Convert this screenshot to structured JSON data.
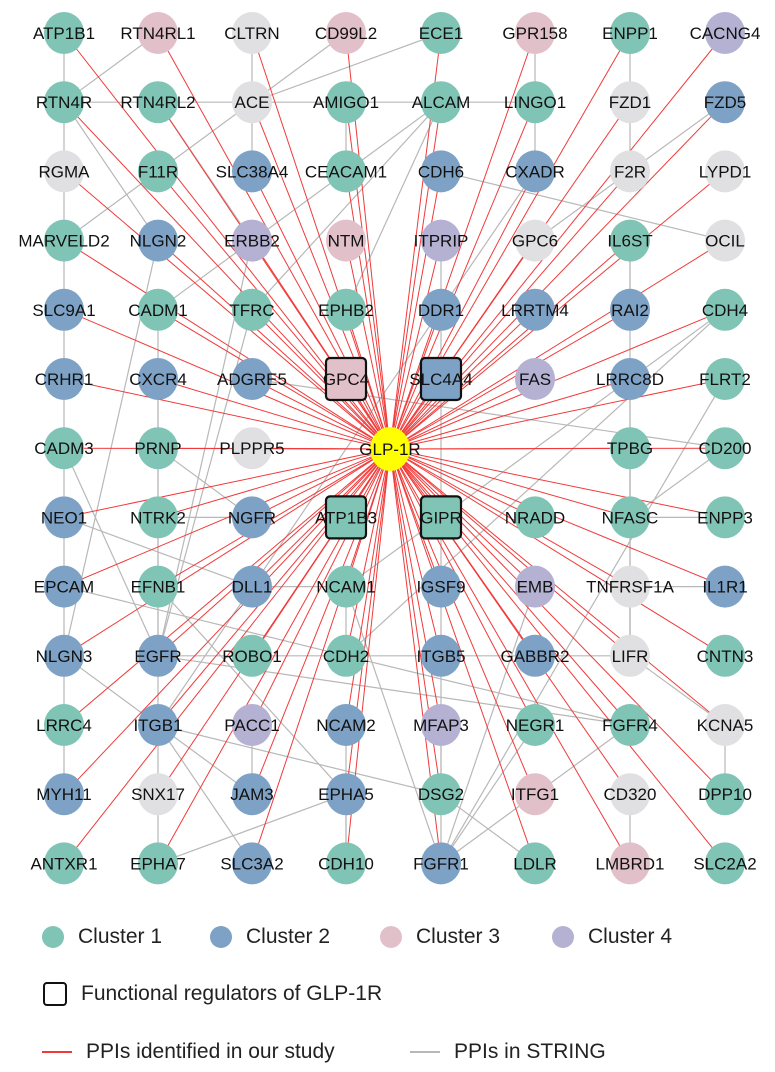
{
  "colors": {
    "cluster1": "#80c4b5",
    "cluster2": "#7ea2c6",
    "cluster3": "#e2c0c9",
    "cluster4": "#b5b1d3",
    "unclustered": "#e0e0e2",
    "center": "#ffff00",
    "study_edge": "#f03a3a",
    "string_edge": "#b8b8b8"
  },
  "center": {
    "name": "GLP-1R"
  },
  "rows": [
    [
      [
        "ATP1B1",
        1
      ],
      [
        "RTN4RL1",
        3
      ],
      [
        "CLTRN",
        0
      ],
      [
        "CD99L2",
        3
      ],
      [
        "ECE1",
        1
      ],
      [
        "GPR158",
        3
      ],
      [
        "ENPP1",
        1
      ],
      [
        "CACNG4",
        4
      ]
    ],
    [
      [
        "RTN4R",
        1
      ],
      [
        "RTN4RL2",
        1
      ],
      [
        "ACE",
        0
      ],
      [
        "AMIGO1",
        1
      ],
      [
        "ALCAM",
        1
      ],
      [
        "LINGO1",
        1
      ],
      [
        "FZD1",
        0
      ],
      [
        "FZD5",
        2
      ]
    ],
    [
      [
        "RGMA",
        0
      ],
      [
        "F11R",
        1
      ],
      [
        "SLC38A4",
        2
      ],
      [
        "CEACAM1",
        1
      ],
      [
        "CDH6",
        2
      ],
      [
        "CXADR",
        2
      ],
      [
        "F2R",
        0
      ],
      [
        "LYPD1",
        0
      ]
    ],
    [
      [
        "MARVELD2",
        1
      ],
      [
        "NLGN2",
        2
      ],
      [
        "ERBB2",
        4
      ],
      [
        "NTM",
        3
      ],
      [
        "ITPRIP",
        4
      ],
      [
        "GPC6",
        0
      ],
      [
        "IL6ST",
        1
      ],
      [
        "OCIL",
        0
      ]
    ],
    [
      [
        "SLC9A1",
        2
      ],
      [
        "CADM1",
        1
      ],
      [
        "TFRC",
        1
      ],
      [
        "EPHB2",
        1
      ],
      [
        "DDR1",
        2
      ],
      [
        "LRRTM4",
        2
      ],
      [
        "RAI2",
        2
      ],
      [
        "CDH4",
        1
      ]
    ],
    [
      [
        "CRHR1",
        2
      ],
      [
        "CXCR4",
        2
      ],
      [
        "ADGRE5",
        2
      ],
      [
        "GPC4",
        3,
        "regulator"
      ],
      [
        "SLC4A4",
        2,
        "regulator"
      ],
      [
        "FAS",
        4
      ],
      [
        "LRRC8D",
        2
      ],
      [
        "FLRT2",
        1
      ]
    ],
    [
      [
        "CADM3",
        1
      ],
      [
        "PRNP",
        1
      ],
      [
        "PLPPR5",
        0
      ],
      null,
      null,
      null,
      [
        "TPBG",
        1
      ],
      [
        "CD200",
        1
      ]
    ],
    [
      [
        "NEO1",
        2
      ],
      [
        "NTRK2",
        1
      ],
      [
        "NGFR",
        2
      ],
      [
        "ATP1B3",
        1,
        "regulator"
      ],
      [
        "GIPR",
        1,
        "regulator"
      ],
      [
        "NRADD",
        1
      ],
      [
        "NFASC",
        1
      ],
      [
        "ENPP3",
        1
      ]
    ],
    [
      [
        "EPCAM",
        2
      ],
      [
        "EFNB1",
        1
      ],
      [
        "DLL1",
        2
      ],
      [
        "NCAM1",
        1
      ],
      [
        "IGSF9",
        2
      ],
      [
        "EMB",
        4
      ],
      [
        "TNFRSF1A",
        0
      ],
      [
        "IL1R1",
        2
      ]
    ],
    [
      [
        "NLGN3",
        2
      ],
      [
        "EGFR",
        2
      ],
      [
        "ROBO1",
        1
      ],
      [
        "CDH2",
        1
      ],
      [
        "ITGB5",
        2
      ],
      [
        "GABBR2",
        2
      ],
      [
        "LIFR",
        0
      ],
      [
        "CNTN3",
        1
      ]
    ],
    [
      [
        "LRRC4",
        1
      ],
      [
        "ITGB1",
        2
      ],
      [
        "PACC1",
        4
      ],
      [
        "NCAM2",
        2
      ],
      [
        "MFAP3",
        4
      ],
      [
        "NEGR1",
        1
      ],
      [
        "FGFR4",
        1
      ],
      [
        "KCNA5",
        0
      ]
    ],
    [
      [
        "MYH11",
        2
      ],
      [
        "SNX17",
        0
      ],
      [
        "JAM3",
        2
      ],
      [
        "EPHA5",
        2
      ],
      [
        "DSG2",
        1
      ],
      [
        "ITFG1",
        3
      ],
      [
        "CD320",
        0
      ],
      [
        "DPP10",
        1
      ]
    ],
    [
      [
        "ANTXR1",
        1
      ],
      [
        "EPHA7",
        1
      ],
      [
        "SLC3A2",
        2
      ],
      [
        "CDH10",
        1
      ],
      [
        "FGFR1",
        2
      ],
      [
        "LDLR",
        1
      ],
      [
        "LMBRD1",
        3
      ],
      [
        "SLC2A2",
        1
      ]
    ]
  ],
  "string_edges": [
    [
      "ATP1B1",
      "RTN4R"
    ],
    [
      "RTN4RL1",
      "RTN4R"
    ],
    [
      "CLTRN",
      "ACE"
    ],
    [
      "CD99L2",
      "ACE"
    ],
    [
      "ECE1",
      "ACE"
    ],
    [
      "GPR158",
      "LINGO1"
    ],
    [
      "ENPP1",
      "FZD1"
    ],
    [
      "RTN4R",
      "RTN4RL2"
    ],
    [
      "RTN4RL2",
      "ACE"
    ],
    [
      "ACE",
      "AMIGO1"
    ],
    [
      "AMIGO1",
      "ALCAM"
    ],
    [
      "ALCAM",
      "LINGO1"
    ],
    [
      "RTN4R",
      "RGMA"
    ],
    [
      "RGMA",
      "MARVELD2"
    ],
    [
      "ACE",
      "SLC38A4"
    ],
    [
      "ACE",
      "MARVELD2"
    ],
    [
      "FZD1",
      "F2R"
    ],
    [
      "FZD5",
      "F2R"
    ],
    [
      "CDH6",
      "OCIL"
    ],
    [
      "LINGO1",
      "CXADR"
    ],
    [
      "AMIGO1",
      "CEACAM1"
    ],
    [
      "RTN4R",
      "NLGN2"
    ],
    [
      "RTN4RL2",
      "ERBB2"
    ],
    [
      "ALCAM",
      "CADM1"
    ],
    [
      "ALCAM",
      "TFRC"
    ],
    [
      "ALCAM",
      "EPHB2"
    ],
    [
      "F2R",
      "GPC6"
    ],
    [
      "IL6ST",
      "RAI2"
    ],
    [
      "MARVELD2",
      "SLC9A1"
    ],
    [
      "SLC9A1",
      "CRHR1"
    ],
    [
      "CRHR1",
      "CADM3"
    ],
    [
      "CADM3",
      "NEO1"
    ],
    [
      "NEO1",
      "EPCAM"
    ],
    [
      "EPCAM",
      "NLGN3"
    ],
    [
      "NLGN3",
      "LRRC4"
    ],
    [
      "CADM1",
      "EFNB1"
    ],
    [
      "NLGN2",
      "NLGN3"
    ],
    [
      "ERBB2",
      "EGFR"
    ],
    [
      "TFRC",
      "EGFR"
    ],
    [
      "CXCR4",
      "EGFR"
    ],
    [
      "ADGRE5",
      "CD200"
    ],
    [
      "ITPRIP",
      "FGFR1"
    ],
    [
      "CXADR",
      "ITGB1"
    ],
    [
      "CDH4",
      "NCAM1"
    ],
    [
      "CDH4",
      "CDH2"
    ],
    [
      "FLRT2",
      "FGFR1"
    ],
    [
      "TPBG",
      "LIFR"
    ],
    [
      "LRRC8D",
      "TPBG"
    ],
    [
      "TPBG",
      "NFASC"
    ],
    [
      "NTRK2",
      "NGFR"
    ],
    [
      "NGFR",
      "PRNP"
    ],
    [
      "EFNB1",
      "EPHA5"
    ],
    [
      "EFNB1",
      "EGFR"
    ],
    [
      "DLL1",
      "NCAM1"
    ],
    [
      "NCAM1",
      "CDH2"
    ],
    [
      "NCAM1",
      "FGFR1"
    ],
    [
      "EGFR",
      "ROBO1"
    ],
    [
      "ROBO1",
      "CDH2"
    ],
    [
      "CDH2",
      "ITGB5"
    ],
    [
      "ITGB5",
      "GABBR2"
    ],
    [
      "GABBR2",
      "LIFR"
    ],
    [
      "LIFR",
      "IL6ST"
    ],
    [
      "TNFRSF1A",
      "IL1R1"
    ],
    [
      "TNFRSF1A",
      "LIFR"
    ],
    [
      "EGFR",
      "ITGB1"
    ],
    [
      "ITGB1",
      "SNX17"
    ],
    [
      "ITGB1",
      "JAM3"
    ],
    [
      "ITGB1",
      "DSG2"
    ],
    [
      "PACC1",
      "JAM3"
    ],
    [
      "NCAM2",
      "CDH10"
    ],
    [
      "EPHA5",
      "EPHA7"
    ],
    [
      "EPHA5",
      "CDH10"
    ],
    [
      "MFAP3",
      "DSG2"
    ],
    [
      "DSG2",
      "LDLR"
    ],
    [
      "FGFR1",
      "FGFR4"
    ],
    [
      "FGFR1",
      "NEGR1"
    ],
    [
      "CD320",
      "LMBRD1"
    ],
    [
      "KCNA5",
      "DPP10"
    ],
    [
      "LIFR",
      "KCNA5"
    ],
    [
      "SLC3A2",
      "ITGB1"
    ],
    [
      "EGFR",
      "FGFR4"
    ],
    [
      "CDH2",
      "FGFR4"
    ],
    [
      "EMB",
      "FGFR1"
    ],
    [
      "SNX17",
      "EPHA7"
    ],
    [
      "MYH11",
      "LRRC4"
    ],
    [
      "NLGN3",
      "ITGB1"
    ],
    [
      "EPCAM",
      "CDH2"
    ],
    [
      "CADM3",
      "EGFR"
    ],
    [
      "NEO1",
      "DLL1"
    ],
    [
      "CD200",
      "NFASC"
    ],
    [
      "ENPP3",
      "NFASC"
    ]
  ],
  "legend": {
    "cluster1": "Cluster 1",
    "cluster2": "Cluster 2",
    "cluster3": "Cluster 3",
    "cluster4": "Cluster 4",
    "regulators": "Functional regulators of GLP-1R",
    "study_edges": "PPIs identified in our study",
    "string_edges": "PPIs in STRING"
  }
}
